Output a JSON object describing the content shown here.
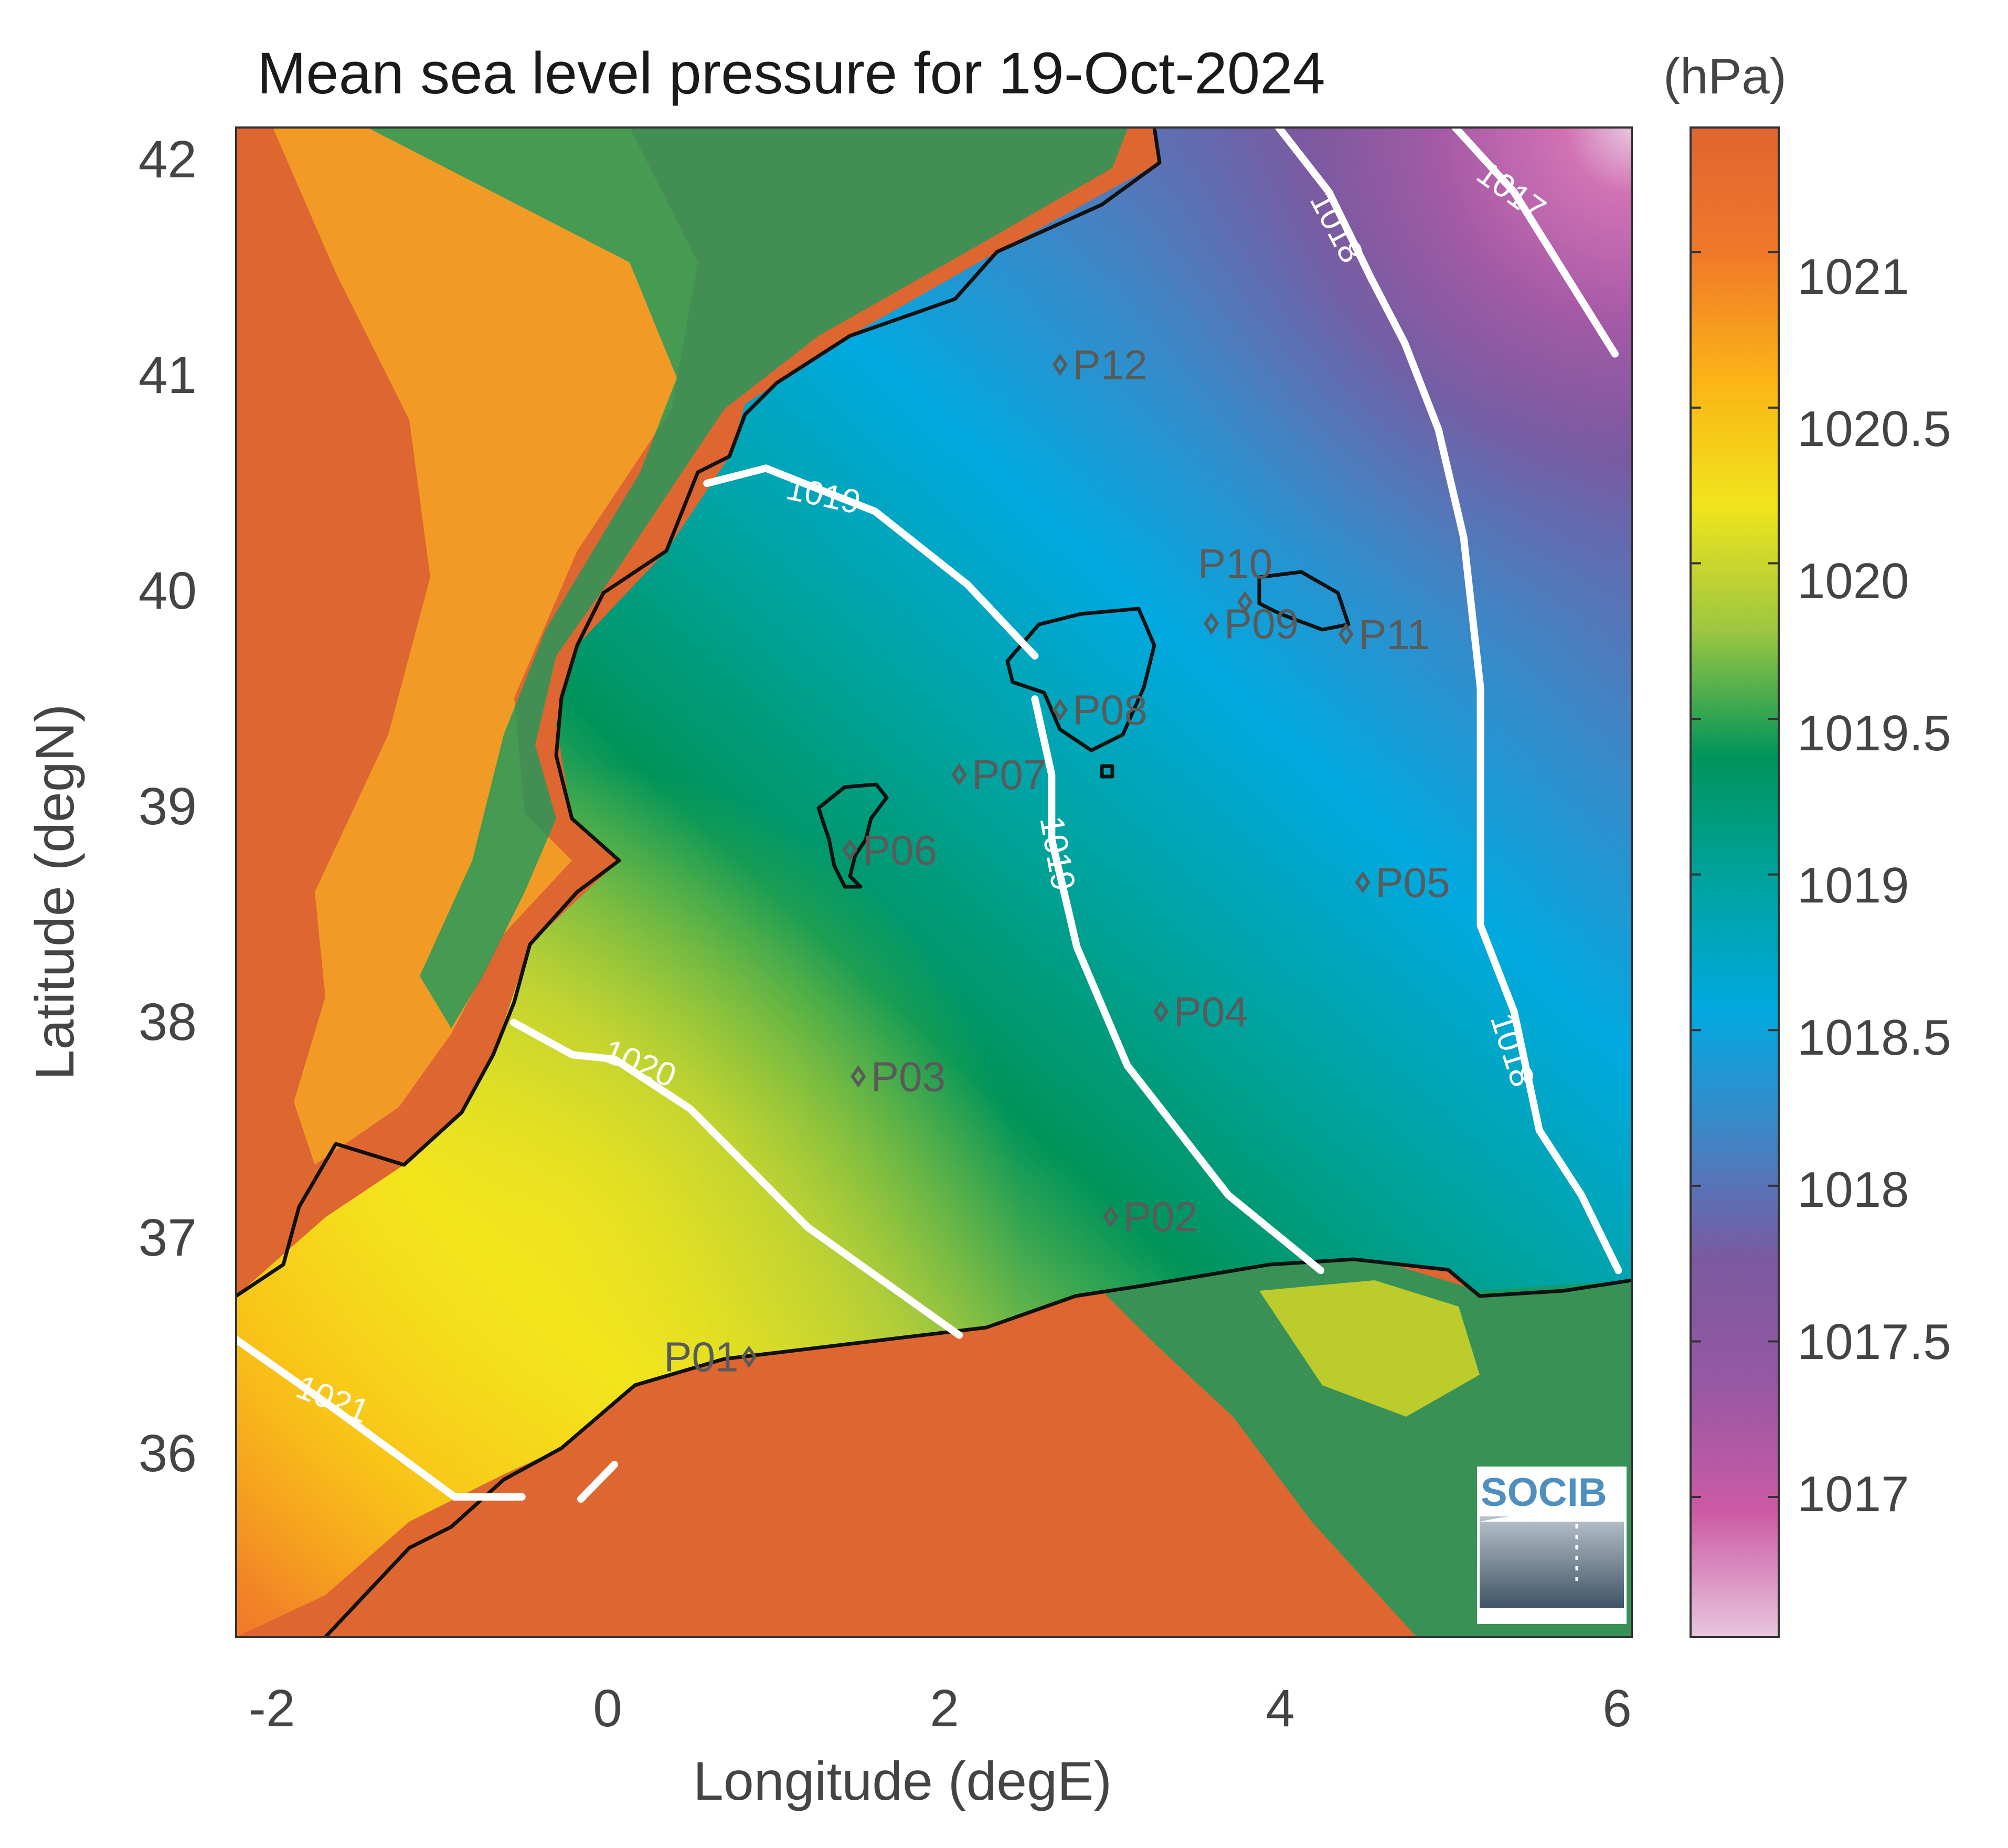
{
  "title": "Mean sea level pressure for 19-Oct-2024",
  "units": "(hPa)",
  "xlabel": "Longitude (degE)",
  "ylabel": "Latitude (degN)",
  "x_ticks": [
    "-2",
    "0",
    "2",
    "4",
    "6"
  ],
  "y_ticks": [
    "42",
    "41",
    "40",
    "39",
    "38",
    "37",
    "36"
  ],
  "colorbar_ticks": [
    "1021",
    "1020.5",
    "1020",
    "1019.5",
    "1019",
    "1018.5",
    "1018",
    "1017.5",
    "1017"
  ],
  "contour_labels": [
    "1021",
    "1020",
    "1019",
    "1019",
    "1018",
    "1018",
    "1017"
  ],
  "stations": [
    "P01",
    "P02",
    "P03",
    "P04",
    "P05",
    "P06",
    "P07",
    "P08",
    "P09",
    "P10",
    "P11",
    "P12"
  ],
  "logo": "SOCIB",
  "chart_data": {
    "type": "heatmap",
    "title": "Mean sea level pressure for 19-Oct-2024",
    "xlabel": "Longitude (degE)",
    "ylabel": "Latitude (degN)",
    "xlim": [
      -2.2,
      6.1
    ],
    "ylim": [
      35.2,
      42.2
    ],
    "clim": [
      1016.55,
      1021.4
    ],
    "colorbar_units": "(hPa)",
    "colorbar_ticks": [
      1017,
      1017.5,
      1018,
      1018.5,
      1019,
      1019.5,
      1020,
      1020.5,
      1021
    ],
    "colormap": [
      "#e8c6de",
      "#cc5aa4",
      "#9758a4",
      "#7b59a0",
      "#3f86c6",
      "#00a9e0",
      "#00a39f",
      "#00945a",
      "#9dc641",
      "#f1e41c",
      "#fbb416",
      "#f0782a",
      "#de6630"
    ],
    "contours": [
      {
        "level": 1021,
        "points": [
          [
            -2.2,
            36.58
          ],
          [
            -1.6,
            36.25
          ],
          [
            -0.9,
            35.85
          ],
          [
            -0.5,
            35.85
          ]
        ]
      },
      {
        "level": 1021,
        "points": [
          [
            -0.15,
            35.84
          ],
          [
            0.05,
            36.0
          ]
        ]
      },
      {
        "level": 1020,
        "points": [
          [
            -0.55,
            38.05
          ],
          [
            -0.2,
            37.9
          ],
          [
            0.05,
            37.88
          ],
          [
            0.5,
            37.65
          ],
          [
            1.2,
            37.1
          ],
          [
            2.1,
            36.6
          ]
        ]
      },
      {
        "level": 1019,
        "points": [
          [
            0.6,
            40.55
          ],
          [
            0.95,
            40.62
          ],
          [
            1.6,
            40.42
          ],
          [
            2.15,
            40.08
          ],
          [
            2.55,
            39.75
          ]
        ]
      },
      {
        "level": 1019,
        "points": [
          [
            2.55,
            39.55
          ],
          [
            2.65,
            39.2
          ],
          [
            2.65,
            38.9
          ],
          [
            2.8,
            38.4
          ],
          [
            3.1,
            37.85
          ],
          [
            3.7,
            37.25
          ],
          [
            4.25,
            36.9
          ]
        ]
      },
      {
        "level": 1018,
        "points": [
          [
            4.0,
            42.2
          ],
          [
            4.3,
            41.9
          ],
          [
            4.55,
            41.5
          ],
          [
            4.75,
            41.2
          ],
          [
            4.95,
            40.8
          ],
          [
            5.1,
            40.3
          ],
          [
            5.2,
            39.6
          ],
          [
            5.2,
            38.5
          ],
          [
            5.4,
            38.1
          ],
          [
            5.55,
            37.55
          ],
          [
            5.8,
            37.25
          ],
          [
            6.02,
            36.9
          ]
        ]
      },
      {
        "level": 1017,
        "points": [
          [
            5.05,
            42.2
          ],
          [
            5.4,
            41.9
          ],
          [
            5.6,
            41.65
          ],
          [
            6.0,
            41.15
          ]
        ]
      }
    ],
    "station_points": [
      {
        "name": "P01",
        "lon": 0.85,
        "lat": 36.5
      },
      {
        "name": "P02",
        "lon": 3.0,
        "lat": 37.15
      },
      {
        "name": "P03",
        "lon": 1.5,
        "lat": 37.8
      },
      {
        "name": "P04",
        "lon": 3.3,
        "lat": 38.1
      },
      {
        "name": "P05",
        "lon": 4.5,
        "lat": 38.7
      },
      {
        "name": "P06",
        "lon": 1.45,
        "lat": 38.85
      },
      {
        "name": "P07",
        "lon": 2.1,
        "lat": 39.2
      },
      {
        "name": "P08",
        "lon": 2.7,
        "lat": 39.5
      },
      {
        "name": "P09",
        "lon": 3.6,
        "lat": 39.9
      },
      {
        "name": "P10",
        "lon": 3.8,
        "lat": 40.0
      },
      {
        "name": "P11",
        "lon": 4.4,
        "lat": 39.85
      },
      {
        "name": "P12",
        "lon": 2.7,
        "lat": 41.1
      }
    ]
  }
}
